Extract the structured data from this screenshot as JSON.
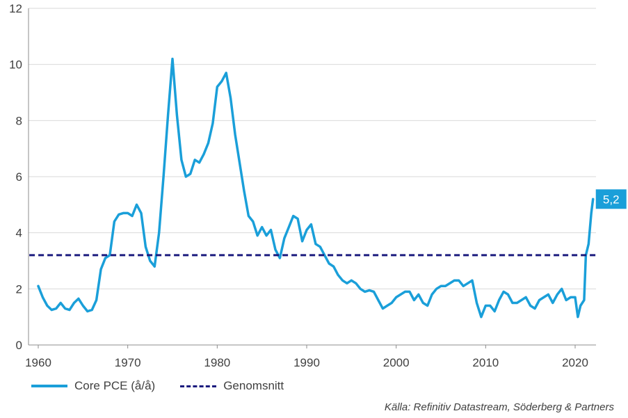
{
  "chart_data": {
    "type": "line",
    "title": "",
    "xlabel": "",
    "ylabel": "",
    "xlim": [
      1959,
      2023
    ],
    "ylim": [
      0,
      12
    ],
    "x_ticks": [
      1960,
      1970,
      1980,
      1990,
      2000,
      2010,
      2020
    ],
    "x_tick_labels": [
      "1960",
      "1970",
      "1980",
      "1990",
      "2000",
      "2010",
      "2020"
    ],
    "y_ticks": [
      0,
      2,
      4,
      6,
      8,
      10,
      12
    ],
    "y_tick_labels": [
      "0",
      "2",
      "4",
      "6",
      "8",
      "10",
      "12"
    ],
    "grid": "horizontal",
    "legend_position": "bottom-left",
    "series": [
      {
        "name": "Core PCE (å/å)",
        "color": "#1a9fd9",
        "points": [
          [
            1960.0,
            2.1
          ],
          [
            1960.5,
            1.7
          ],
          [
            1961.0,
            1.4
          ],
          [
            1961.5,
            1.25
          ],
          [
            1962.0,
            1.3
          ],
          [
            1962.5,
            1.5
          ],
          [
            1963.0,
            1.3
          ],
          [
            1963.5,
            1.25
          ],
          [
            1964.0,
            1.5
          ],
          [
            1964.5,
            1.65
          ],
          [
            1965.0,
            1.4
          ],
          [
            1965.5,
            1.2
          ],
          [
            1966.0,
            1.25
          ],
          [
            1966.5,
            1.6
          ],
          [
            1967.0,
            2.7
          ],
          [
            1967.5,
            3.1
          ],
          [
            1968.0,
            3.2
          ],
          [
            1968.5,
            4.4
          ],
          [
            1969.0,
            4.65
          ],
          [
            1969.5,
            4.7
          ],
          [
            1970.0,
            4.7
          ],
          [
            1970.5,
            4.6
          ],
          [
            1971.0,
            5.0
          ],
          [
            1971.5,
            4.7
          ],
          [
            1972.0,
            3.5
          ],
          [
            1972.5,
            3.0
          ],
          [
            1973.0,
            2.8
          ],
          [
            1973.5,
            4.0
          ],
          [
            1974.0,
            6.0
          ],
          [
            1974.5,
            8.2
          ],
          [
            1975.0,
            10.2
          ],
          [
            1975.5,
            8.2
          ],
          [
            1976.0,
            6.6
          ],
          [
            1976.5,
            6.0
          ],
          [
            1977.0,
            6.1
          ],
          [
            1977.5,
            6.6
          ],
          [
            1978.0,
            6.5
          ],
          [
            1978.5,
            6.8
          ],
          [
            1979.0,
            7.2
          ],
          [
            1979.5,
            7.9
          ],
          [
            1980.0,
            9.2
          ],
          [
            1980.5,
            9.4
          ],
          [
            1981.0,
            9.7
          ],
          [
            1981.5,
            8.8
          ],
          [
            1982.0,
            7.5
          ],
          [
            1982.5,
            6.5
          ],
          [
            1983.0,
            5.5
          ],
          [
            1983.5,
            4.6
          ],
          [
            1984.0,
            4.4
          ],
          [
            1984.5,
            3.9
          ],
          [
            1985.0,
            4.2
          ],
          [
            1985.5,
            3.9
          ],
          [
            1986.0,
            4.1
          ],
          [
            1986.5,
            3.4
          ],
          [
            1987.0,
            3.1
          ],
          [
            1987.5,
            3.8
          ],
          [
            1988.0,
            4.2
          ],
          [
            1988.5,
            4.6
          ],
          [
            1989.0,
            4.5
          ],
          [
            1989.5,
            3.7
          ],
          [
            1990.0,
            4.1
          ],
          [
            1990.5,
            4.3
          ],
          [
            1991.0,
            3.6
          ],
          [
            1991.5,
            3.5
          ],
          [
            1992.0,
            3.2
          ],
          [
            1992.5,
            2.9
          ],
          [
            1993.0,
            2.8
          ],
          [
            1993.5,
            2.5
          ],
          [
            1994.0,
            2.3
          ],
          [
            1994.5,
            2.2
          ],
          [
            1995.0,
            2.3
          ],
          [
            1995.5,
            2.2
          ],
          [
            1996.0,
            2.0
          ],
          [
            1996.5,
            1.9
          ],
          [
            1997.0,
            1.95
          ],
          [
            1997.5,
            1.9
          ],
          [
            1998.0,
            1.6
          ],
          [
            1998.5,
            1.3
          ],
          [
            1999.0,
            1.4
          ],
          [
            1999.5,
            1.5
          ],
          [
            2000.0,
            1.7
          ],
          [
            2000.5,
            1.8
          ],
          [
            2001.0,
            1.9
          ],
          [
            2001.5,
            1.9
          ],
          [
            2002.0,
            1.6
          ],
          [
            2002.5,
            1.8
          ],
          [
            2003.0,
            1.5
          ],
          [
            2003.5,
            1.4
          ],
          [
            2004.0,
            1.8
          ],
          [
            2004.5,
            2.0
          ],
          [
            2005.0,
            2.1
          ],
          [
            2005.5,
            2.1
          ],
          [
            2006.0,
            2.2
          ],
          [
            2006.5,
            2.3
          ],
          [
            2007.0,
            2.3
          ],
          [
            2007.5,
            2.1
          ],
          [
            2008.0,
            2.2
          ],
          [
            2008.5,
            2.3
          ],
          [
            2009.0,
            1.5
          ],
          [
            2009.5,
            1.0
          ],
          [
            2010.0,
            1.4
          ],
          [
            2010.5,
            1.4
          ],
          [
            2011.0,
            1.2
          ],
          [
            2011.5,
            1.6
          ],
          [
            2012.0,
            1.9
          ],
          [
            2012.5,
            1.8
          ],
          [
            2013.0,
            1.5
          ],
          [
            2013.5,
            1.5
          ],
          [
            2014.0,
            1.6
          ],
          [
            2014.5,
            1.7
          ],
          [
            2015.0,
            1.4
          ],
          [
            2015.5,
            1.3
          ],
          [
            2016.0,
            1.6
          ],
          [
            2016.5,
            1.7
          ],
          [
            2017.0,
            1.8
          ],
          [
            2017.5,
            1.5
          ],
          [
            2018.0,
            1.8
          ],
          [
            2018.5,
            2.0
          ],
          [
            2019.0,
            1.6
          ],
          [
            2019.5,
            1.7
          ],
          [
            2020.0,
            1.7
          ],
          [
            2020.3,
            1.0
          ],
          [
            2020.6,
            1.4
          ],
          [
            2021.0,
            1.6
          ],
          [
            2021.2,
            3.2
          ],
          [
            2021.5,
            3.6
          ],
          [
            2021.8,
            4.7
          ],
          [
            2022.0,
            5.2
          ]
        ]
      },
      {
        "name": "Genomsnitt",
        "color": "#1b1b7e",
        "style": "dashed",
        "points": [
          [
            1959.0,
            3.2
          ],
          [
            2022.5,
            3.2
          ]
        ]
      }
    ],
    "annotations": [
      {
        "text": "5,2",
        "x": 2022.0,
        "y": 5.2,
        "background": "#1a9fd9"
      }
    ]
  },
  "legend": {
    "series_1": "Core PCE (å/å)",
    "series_2": "Genomsnitt"
  },
  "source": "Källa: Refinitiv Datastream, Söderberg & Partners"
}
